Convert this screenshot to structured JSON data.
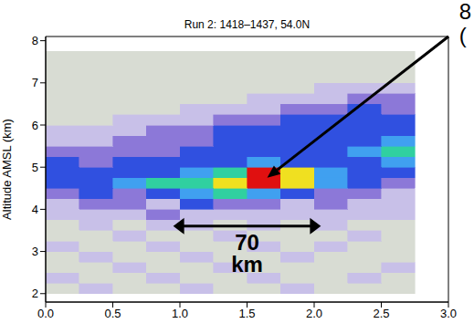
{
  "chart_data": {
    "type": "heatmap",
    "title": "Run 2: 1418–1437, 54.0N",
    "y_label": "Altitude AMSL (km)",
    "xlim": [
      0,
      3
    ],
    "ylim": [
      1.8,
      8.1
    ],
    "xticks": [
      {
        "value": 0,
        "label": "0.0"
      },
      {
        "value": 0.5,
        "label": "0.5"
      },
      {
        "value": 1,
        "label": "1.0"
      },
      {
        "value": 1.5,
        "label": "1.5"
      },
      {
        "value": 2,
        "label": "2.0"
      },
      {
        "value": 2.5,
        "label": "2.5"
      },
      {
        "value": 3,
        "label": "3.0"
      }
    ],
    "yticks": [
      2,
      3,
      4,
      5,
      6,
      7,
      8
    ],
    "x_edges": [
      0,
      0.25,
      0.5,
      0.75,
      1,
      1.25,
      1.5,
      1.75,
      2,
      2.25,
      2.5,
      2.75
    ],
    "y_edges": [
      2,
      2.25,
      2.5,
      2.75,
      3,
      3.25,
      3.5,
      3.75,
      4,
      4.25,
      4.5,
      4.75,
      5,
      5.25,
      5.5,
      5.75,
      6,
      6.25,
      6.5,
      6.75,
      7,
      7.25,
      7.5,
      7.75
    ],
    "values": [
      [
        0,
        1,
        0,
        0,
        1,
        0,
        0,
        1,
        0,
        0,
        0
      ],
      [
        1,
        0,
        0,
        1,
        0,
        0,
        1,
        0,
        0,
        1,
        0
      ],
      [
        0,
        0,
        1,
        0,
        0,
        1,
        0,
        0,
        0,
        0,
        1
      ],
      [
        0,
        1,
        0,
        0,
        1,
        0,
        0,
        1,
        0,
        0,
        0
      ],
      [
        1,
        0,
        0,
        1,
        0,
        0,
        1,
        0,
        1,
        0,
        0
      ],
      [
        0,
        0,
        1,
        0,
        0,
        1,
        0,
        0,
        0,
        1,
        0
      ],
      [
        0,
        1,
        0,
        1,
        1,
        0,
        1,
        0,
        1,
        0,
        0
      ],
      [
        1,
        1,
        1,
        2,
        1,
        1,
        1,
        1,
        1,
        1,
        1
      ],
      [
        1,
        2,
        2,
        1,
        3,
        2,
        2,
        1,
        2,
        1,
        1
      ],
      [
        2,
        3,
        2,
        3,
        4,
        5,
        4,
        3,
        2,
        2,
        1
      ],
      [
        3,
        3,
        4,
        5,
        5,
        6,
        8,
        6,
        4,
        3,
        2
      ],
      [
        3,
        3,
        3,
        3,
        4,
        5,
        8,
        6,
        4,
        3,
        3
      ],
      [
        3,
        2,
        3,
        3,
        3,
        3,
        4,
        3,
        3,
        3,
        4
      ],
      [
        2,
        2,
        2,
        2,
        3,
        3,
        3,
        3,
        3,
        4,
        5
      ],
      [
        1,
        1,
        2,
        2,
        2,
        3,
        3,
        3,
        3,
        3,
        4
      ],
      [
        1,
        1,
        1,
        2,
        2,
        3,
        3,
        3,
        3,
        3,
        3
      ],
      [
        0,
        0,
        1,
        1,
        1,
        2,
        2,
        3,
        3,
        3,
        3
      ],
      [
        0,
        0,
        0,
        0,
        1,
        1,
        1,
        2,
        2,
        3,
        2
      ],
      [
        0,
        0,
        0,
        0,
        0,
        0,
        1,
        1,
        1,
        2,
        2
      ],
      [
        0,
        0,
        0,
        0,
        0,
        0,
        0,
        0,
        1,
        1,
        1
      ],
      [
        0,
        0,
        0,
        0,
        0,
        0,
        0,
        0,
        0,
        0,
        0
      ],
      [
        0,
        0,
        0,
        0,
        0,
        0,
        0,
        0,
        0,
        0,
        0
      ],
      [
        0,
        0,
        0,
        0,
        0,
        0,
        0,
        0,
        0,
        0,
        0
      ]
    ],
    "colors": [
      "#d8dcd3",
      "#c8c0e8",
      "#8c78d8",
      "#3050e0",
      "#40a0f0",
      "#30d0a0",
      "#f0e020",
      "#f08020",
      "#e01010"
    ],
    "annotations": [
      {
        "text": "70 km",
        "x": [
          0.95,
          2.05
        ],
        "y": 3.6
      },
      {
        "text": "8 (",
        "x": 1.65,
        "y": 4.75
      }
    ]
  }
}
